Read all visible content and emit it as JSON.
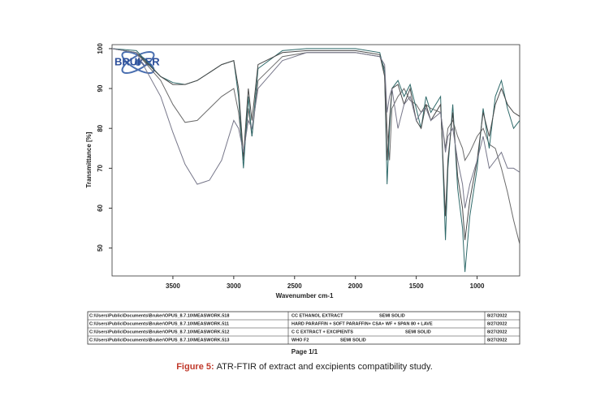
{
  "chart_data": {
    "type": "line",
    "logo": "BRUKER",
    "xlabel": "Wavenumber cm-1",
    "ylabel": "Transmittance [%]",
    "xlim": [
      4000,
      650
    ],
    "ylim": [
      43,
      101
    ],
    "xticks": [
      3500,
      3000,
      2500,
      2000,
      1500,
      1000
    ],
    "yticks": [
      50,
      60,
      70,
      80,
      90,
      100
    ],
    "x": [
      4000,
      3800,
      3600,
      3500,
      3400,
      3300,
      3200,
      3100,
      3000,
      2960,
      2920,
      2880,
      2850,
      2800,
      2600,
      2400,
      2200,
      2000,
      1800,
      1760,
      1740,
      1720,
      1700,
      1650,
      1600,
      1550,
      1500,
      1460,
      1420,
      1380,
      1300,
      1260,
      1240,
      1200,
      1160,
      1120,
      1100,
      1060,
      1000,
      950,
      900,
      850,
      800,
      750,
      700,
      650
    ],
    "series": [
      {
        "name": "CC ETHANOL EXTRACT",
        "color": "#6b6b6b",
        "values": [
          100,
          99,
          92,
          86,
          81.5,
          82,
          85,
          88,
          90,
          84,
          72,
          85,
          78,
          92,
          98,
          99,
          99,
          99,
          98,
          95,
          80,
          72,
          85,
          88,
          90,
          87,
          86,
          84,
          86,
          85,
          84,
          75,
          80,
          82,
          78,
          75,
          72,
          74,
          78,
          80,
          76,
          75,
          70,
          64,
          57,
          51
        ]
      },
      {
        "name": "HARD PARAFFIN + SOFT PARAFFIN+ CSA+ WF + SPAN 80 + LAVE",
        "color": "#2f6a6a",
        "values": [
          100,
          99.5,
          93,
          91.5,
          91,
          92,
          94,
          96,
          97,
          88,
          70,
          88,
          78,
          95,
          99.5,
          100,
          100,
          100,
          99,
          94,
          66,
          80,
          90,
          92,
          88,
          91,
          85,
          80,
          88,
          84,
          88,
          52,
          70,
          86,
          65,
          55,
          44,
          58,
          70,
          85,
          75,
          88,
          92,
          85,
          80,
          82
        ]
      },
      {
        "name": "C C EXTRACT + EXCIPIENTS",
        "color": "#4a4a4a",
        "values": [
          100,
          99,
          93,
          91,
          91,
          92,
          94,
          96,
          97,
          90,
          73,
          90,
          82,
          96,
          99,
          99.5,
          99.5,
          99.5,
          98.5,
          93,
          72,
          82,
          90,
          91,
          86,
          90,
          82,
          80,
          86,
          82,
          86,
          58,
          72,
          84,
          68,
          60,
          52,
          62,
          72,
          84,
          78,
          86,
          90,
          86,
          84,
          83
        ]
      },
      {
        "name": "WHO F2",
        "color": "#77778a",
        "values": [
          100,
          99,
          88,
          79,
          71,
          66,
          67,
          72,
          82,
          80,
          74,
          82,
          80,
          90,
          97,
          99,
          99,
          99,
          98,
          96,
          84,
          88,
          90,
          80,
          86,
          88,
          82,
          84,
          85,
          82,
          84,
          74,
          78,
          80,
          72,
          66,
          60,
          66,
          72,
          78,
          70,
          72,
          74,
          70,
          70,
          69
        ]
      }
    ],
    "table": [
      {
        "path": "C:\\Users\\Public\\Documents\\Bruker\\OPUS_8.7.10\\MEASWORK.518",
        "form": "SEMI SOLID",
        "date": "8/27/2022"
      },
      {
        "path": "C:\\Users\\Public\\Documents\\Bruker\\OPUS_8.7.10\\MEASWORK.511",
        "date": "8/27/2022"
      },
      {
        "path": "C:\\Users\\Public\\Documents\\Bruker\\OPUS_8.7.10\\MEASWORK.512",
        "form": "SEMI SOLID",
        "date": "8/27/2022"
      },
      {
        "path": "C:\\Users\\Public\\Documents\\Bruker\\OPUS_8.7.10\\MEASWORK.513",
        "form": "SEMI SOLID",
        "date": "8/27/2022"
      }
    ],
    "page": "Page 1/1",
    "caption_label": "Figure 5:",
    "caption": "ATR-FTIR of extract and excipients compatibility study."
  }
}
